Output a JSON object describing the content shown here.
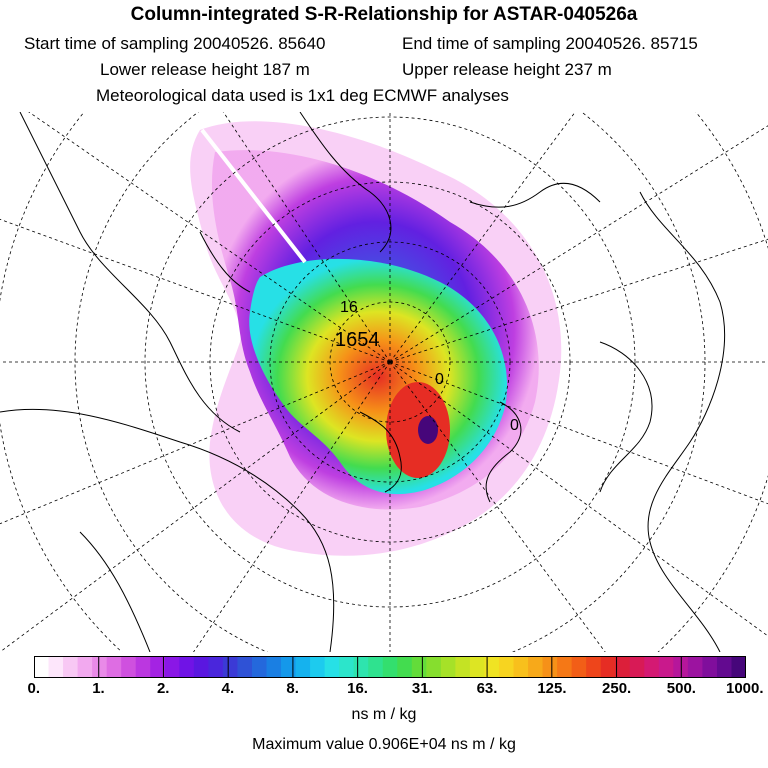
{
  "header": {
    "title": "Column-integrated S-R-Relationship for ASTAR-040526a",
    "start_time": "Start time of sampling 20040526. 85640",
    "end_time": "End time of sampling 20040526. 85715",
    "lower_release": "Lower release height  187 m",
    "upper_release": "Upper release height  237 m",
    "met_data": "Meteorological data used is 1x1 deg ECMWF analyses"
  },
  "map": {
    "release_labels": [
      "1654",
      "16",
      "0",
      "0"
    ]
  },
  "colorbar": {
    "tick_labels": [
      "0.",
      "1.",
      "2.",
      "4.",
      "8.",
      "16.",
      "31.",
      "63.",
      "125.",
      "250.",
      "500.",
      "1000."
    ],
    "colors": [
      "#ffffff",
      "#fde6fb",
      "#f8c8f4",
      "#f2a9ef",
      "#e98ae8",
      "#de6de3",
      "#cf50df",
      "#bb37e0",
      "#a423e3",
      "#8a17e6",
      "#7013e6",
      "#5a17e0",
      "#4a26dc",
      "#3b3ad6",
      "#2f52d6",
      "#2468dc",
      "#1a7fe3",
      "#1498ea",
      "#15b2ee",
      "#1dcbee",
      "#27e0e6",
      "#2ce5cb",
      "#2ee4ae",
      "#2fe28f",
      "#33df6e",
      "#43dc4f",
      "#63dc3a",
      "#86de2e",
      "#a6e128",
      "#c4e324",
      "#dde523",
      "#f0e323",
      "#f7d420",
      "#f8c01c",
      "#f7a91a",
      "#f69118",
      "#f57816",
      "#f25e17",
      "#ee451b",
      "#e62d24",
      "#dc1f3a",
      "#d81a56",
      "#d41973",
      "#c9198c",
      "#b6169b",
      "#9c13a0",
      "#800e9c",
      "#630a90",
      "#46067a"
    ],
    "units": "ns m / kg",
    "max_value": "Maximum value  0.906E+04 ns m / kg"
  }
}
